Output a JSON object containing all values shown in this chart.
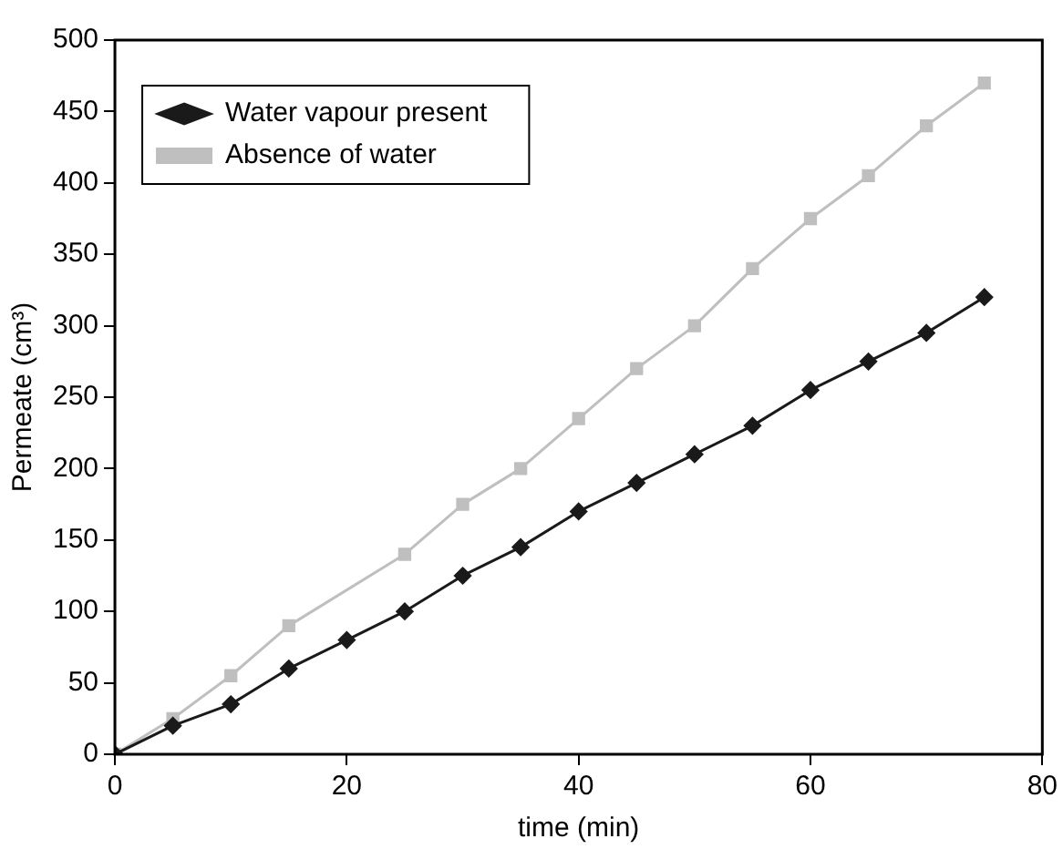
{
  "chart_data": {
    "type": "line",
    "xlabel": "time (min)",
    "ylabel": "Permeate (cm³)",
    "series": [
      {
        "name": "Water vapour present",
        "color": "#1a1a1a",
        "marker": "diamond",
        "x": [
          0,
          5,
          10,
          15,
          20,
          25,
          30,
          35,
          40,
          45,
          50,
          55,
          60,
          65,
          70,
          75
        ],
        "values": [
          0,
          20,
          35,
          60,
          80,
          100,
          125,
          145,
          170,
          190,
          210,
          230,
          255,
          275,
          295,
          320
        ]
      },
      {
        "name": "Absence of water",
        "color": "#bfbfbf",
        "marker": "square",
        "x": [
          0,
          5,
          10,
          15,
          25,
          30,
          35,
          40,
          45,
          50,
          55,
          60,
          65,
          70,
          75
        ],
        "values": [
          0,
          25,
          55,
          90,
          140,
          175,
          200,
          235,
          270,
          300,
          340,
          375,
          405,
          440,
          470
        ]
      }
    ],
    "xlim": [
      0,
      80
    ],
    "xticks": [
      0,
      20,
      40,
      60,
      80
    ],
    "ylim": [
      0,
      500
    ],
    "yticks": [
      0,
      50,
      100,
      150,
      200,
      250,
      300,
      350,
      400,
      450,
      500
    ],
    "grid": false,
    "legend": "top left"
  }
}
